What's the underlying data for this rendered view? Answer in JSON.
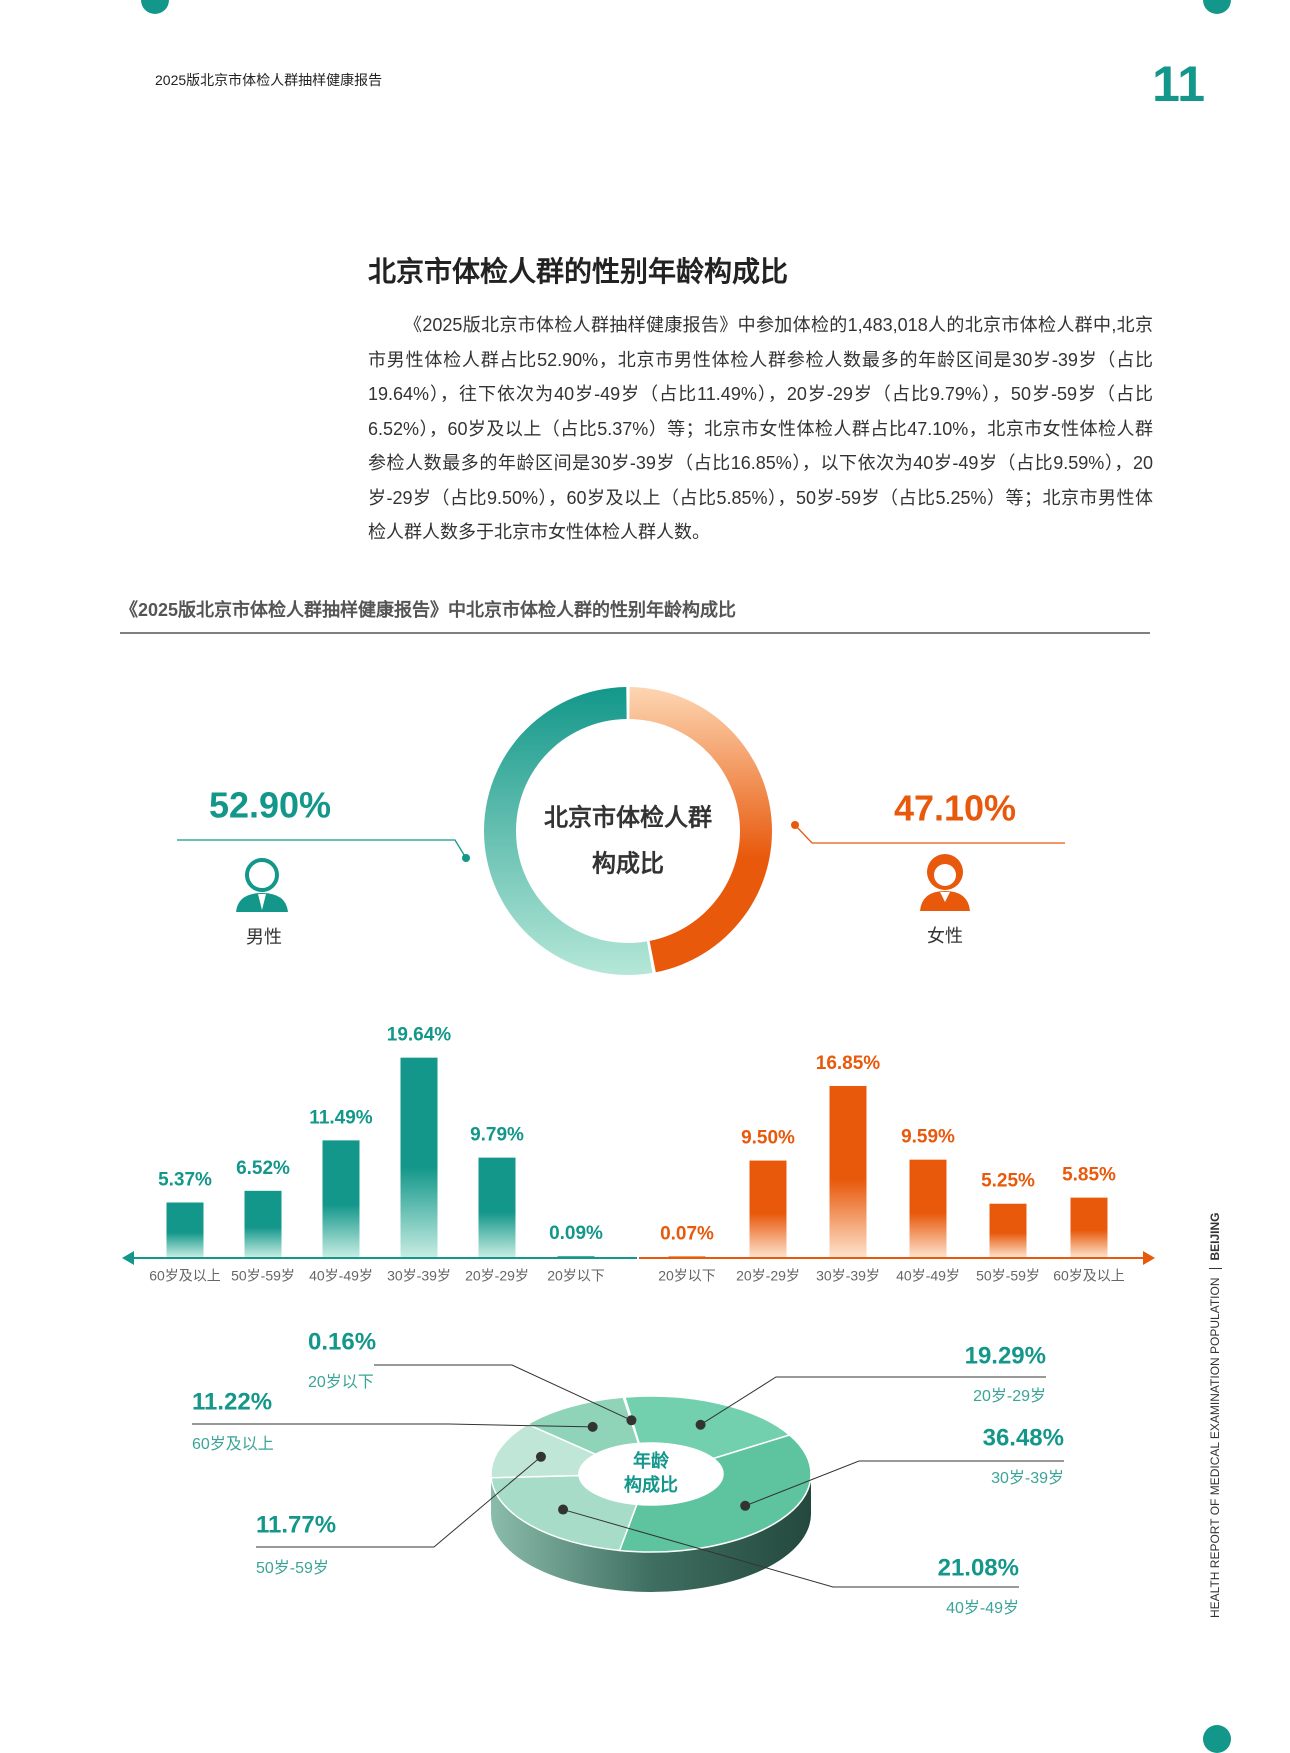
{
  "header": {
    "report": "2025版北京市体检人群抽样健康报告",
    "page": "11"
  },
  "title": "北京市体检人群的性别年龄构成比",
  "paragraph": "《2025版北京市体检人群抽样健康报告》中参加体检的1,483,018人的北京市体检人群中,北京市男性体检人群占比52.90%，北京市男性体检人群参检人数最多的年龄区间是30岁-39岁（占比19.64%），往下依次为40岁-49岁（占比11.49%），20岁-29岁（占比9.79%），50岁-59岁（占比6.52%），60岁及以上（占比5.37%）等；北京市女性体检人群占比47.10%，北京市女性体检人群参检人数最多的年龄区间是30岁-39岁（占比16.85%），以下依次为40岁-49岁（占比9.59%），20岁-29岁（占比9.50%），60岁及以上（占比5.85%），50岁-59岁（占比5.25%）等；北京市男性体检人群人数多于北京市女性体检人群人数。",
  "figure_caption": "《2025版北京市体检人群抽样健康报告》中北京市体检人群的性别年龄构成比",
  "side_label": {
    "text": "HEALTH REPORT OF MEDICAL EXAMINATION POPULATION",
    "city": "BEIJING"
  },
  "chart_data": [
    {
      "type": "donut",
      "center_label": [
        "北京市体检人群",
        "构成比"
      ],
      "categories": [
        "男性",
        "女性"
      ],
      "values": [
        52.9,
        47.1
      ],
      "value_labels": [
        "52.90%",
        "47.10%"
      ],
      "colors": [
        "#13978a",
        "#e8590c"
      ]
    },
    {
      "type": "bar",
      "categories": [
        "60岁及以上",
        "50岁-59岁",
        "40岁-49岁",
        "30岁-39岁",
        "20岁-29岁",
        "20岁以下"
      ],
      "values": [
        5.37,
        6.52,
        11.49,
        19.64,
        9.79,
        0.09
      ],
      "value_labels": [
        "5.37%",
        "6.52%",
        "11.49%",
        "19.64%",
        "9.79%",
        "0.09%"
      ],
      "color": "#13978a"
    },
    {
      "type": "bar",
      "categories": [
        "20岁以下",
        "20岁-29岁",
        "30岁-39岁",
        "40岁-49岁",
        "50岁-59岁",
        "60岁及以上"
      ],
      "values": [
        0.07,
        9.5,
        16.85,
        9.59,
        5.25,
        5.85
      ],
      "value_labels": [
        "0.07%",
        "9.50%",
        "16.85%",
        "9.59%",
        "5.25%",
        "5.85%"
      ],
      "color": "#e8590c"
    },
    {
      "type": "pie",
      "center_label": [
        "年龄",
        "构成比"
      ],
      "categories": [
        "20岁以下",
        "20岁-29岁",
        "30岁-39岁",
        "40岁-49岁",
        "50岁-59岁",
        "60岁及以上"
      ],
      "values": [
        0.16,
        19.29,
        36.48,
        21.08,
        11.77,
        11.22
      ],
      "value_labels": [
        "0.16%",
        "19.29%",
        "36.48%",
        "21.08%",
        "11.77%",
        "11.22%"
      ],
      "colors": [
        "#0f8a7c",
        "#72d0ae",
        "#5ec4a0",
        "#a6dcc8",
        "#c0e6d8",
        "#8fd3b9"
      ]
    }
  ]
}
